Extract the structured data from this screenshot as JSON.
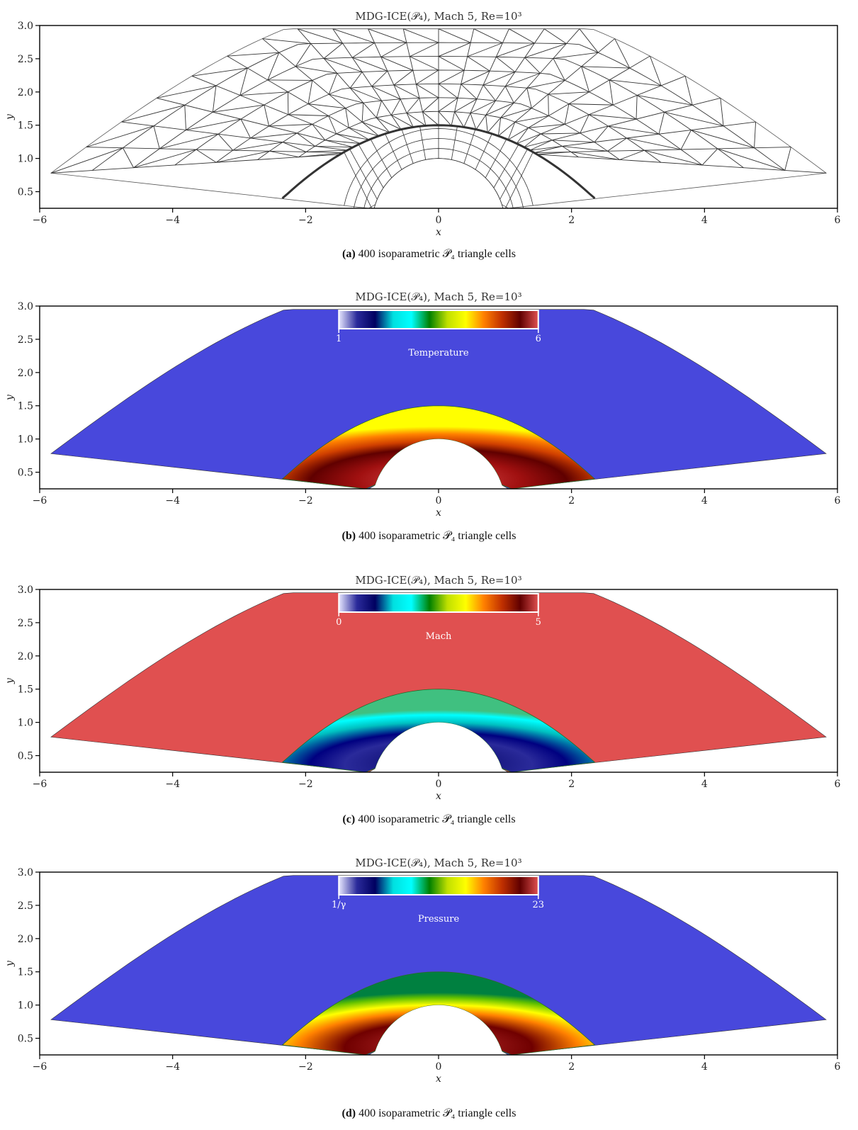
{
  "panels": [
    {
      "id": "a",
      "plot_title": "MDG-ICE(𝒫₄), Mach 5, Re=10³",
      "caption_label": "(a)",
      "caption_text": "400 isoparametric 𝒫₄ triangle cells",
      "kind": "mesh"
    },
    {
      "id": "b",
      "plot_title": "MDG-ICE(𝒫₄), Mach 5, Re=10³",
      "caption_label": "(b)",
      "caption_text": "400 isoparametric 𝒫₄ triangle cells",
      "kind": "temperature",
      "colorbar": {
        "min_label": "1",
        "max_label": "6",
        "title": "Temperature"
      },
      "freestream_color": "#4848dc"
    },
    {
      "id": "c",
      "plot_title": "MDG-ICE(𝒫₄), Mach 5, Re=10³",
      "caption_label": "(c)",
      "caption_text": "400 isoparametric 𝒫₄ triangle cells",
      "kind": "mach",
      "colorbar": {
        "min_label": "0",
        "max_label": "5",
        "title": "Mach"
      },
      "freestream_color": "#e05050"
    },
    {
      "id": "d",
      "plot_title": "MDG-ICE(𝒫₄), Mach 5, Re=10³",
      "caption_label": "(d)",
      "caption_text": "400 isoparametric 𝒫₄ triangle cells",
      "kind": "pressure",
      "colorbar": {
        "min_label": "1/γ",
        "max_label": "23",
        "title": "Pressure"
      },
      "freestream_color": "#4848dc"
    }
  ],
  "axes": {
    "xlabel": "x",
    "ylabel": "y",
    "xlim": [
      -6,
      6
    ],
    "ylim": [
      0.25,
      3.0
    ],
    "xticks": [
      "−6",
      "−4",
      "−2",
      "0",
      "2",
      "4",
      "6"
    ],
    "yticks": [
      "0.5",
      "1.0",
      "1.5",
      "2.0",
      "2.5",
      "3.0"
    ]
  },
  "colormap": [
    "#e6e6ff",
    "#2a2a9a",
    "#000060",
    "#00e0e0",
    "#00ffff",
    "#008000",
    "#c0e000",
    "#ffff00",
    "#ff8000",
    "#c03000",
    "#600000",
    "#e05050"
  ]
}
